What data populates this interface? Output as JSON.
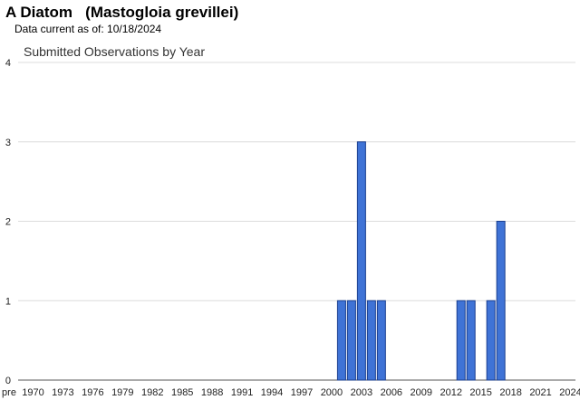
{
  "header": {
    "title": "A Diatom   (Mastogloia grevillei)",
    "data_current": "Data current as of: 10/18/2024"
  },
  "chart_data": {
    "type": "bar",
    "title": "Submitted Observations by Year",
    "xlabel": "",
    "ylabel": "",
    "ylim": [
      0,
      4
    ],
    "y_ticks": [
      "0",
      "1",
      "2",
      "3",
      "4"
    ],
    "x_tick_labels": [
      "pre",
      "1970",
      "1973",
      "1976",
      "1979",
      "1982",
      "1985",
      "1988",
      "1991",
      "1994",
      "1997",
      "2000",
      "2003",
      "2006",
      "2009",
      "2012",
      "2015",
      "2018",
      "2021",
      "2024"
    ],
    "categories": [
      "pre",
      "1970",
      "1971",
      "1972",
      "1973",
      "1974",
      "1975",
      "1976",
      "1977",
      "1978",
      "1979",
      "1980",
      "1981",
      "1982",
      "1983",
      "1984",
      "1985",
      "1986",
      "1987",
      "1988",
      "1989",
      "1990",
      "1991",
      "1992",
      "1993",
      "1994",
      "1995",
      "1996",
      "1997",
      "1998",
      "1999",
      "2000",
      "2001",
      "2002",
      "2003",
      "2004",
      "2005",
      "2006",
      "2007",
      "2008",
      "2009",
      "2010",
      "2011",
      "2012",
      "2013",
      "2014",
      "2015",
      "2016",
      "2017",
      "2018",
      "2019",
      "2020",
      "2021",
      "2022",
      "2023",
      "2024"
    ],
    "values": [
      0,
      0,
      0,
      0,
      0,
      0,
      0,
      0,
      0,
      0,
      0,
      0,
      0,
      0,
      0,
      0,
      0,
      0,
      0,
      0,
      0,
      0,
      0,
      0,
      0,
      0,
      0,
      0,
      0,
      0,
      0,
      0,
      1,
      1,
      3,
      1,
      1,
      0,
      0,
      0,
      0,
      0,
      0,
      0,
      1,
      1,
      0,
      1,
      2,
      0,
      0,
      0,
      0,
      0,
      0,
      0
    ],
    "grid": true,
    "bar_color": "#3f73d6",
    "bar_edge_color": "#1b3f8f"
  }
}
